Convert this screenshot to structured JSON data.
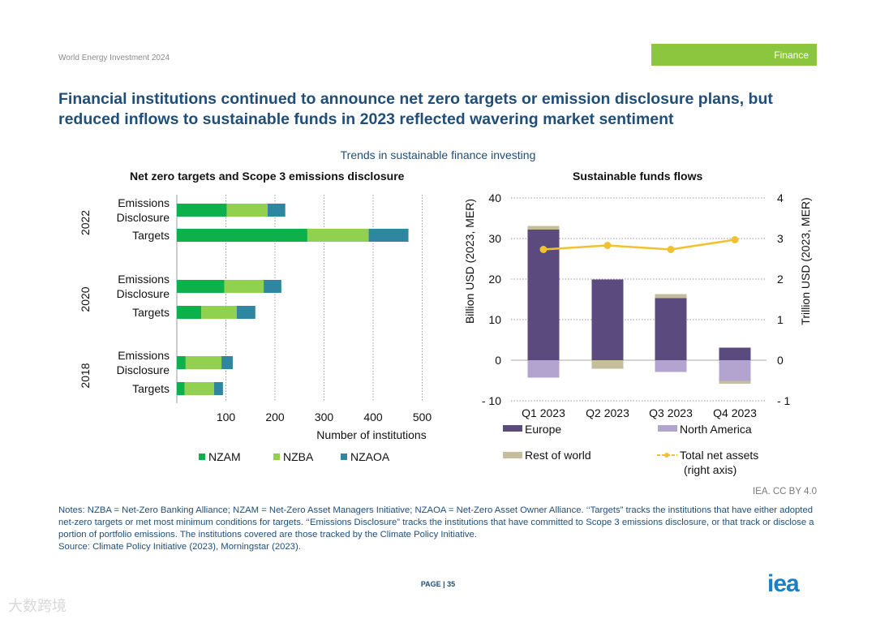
{
  "header": {
    "report": "World Energy Investment 2024",
    "section": "Finance"
  },
  "title": "Financial institutions continued to announce net zero targets or emission disclosure plans, but reduced inflows to sustainable funds in 2023 reflected wavering market sentiment",
  "figure_title": "Trends in sustainable finance investing",
  "colors": {
    "NZAM": "#0db04b",
    "NZBA": "#92d050",
    "NZAOA": "#2e86a0",
    "Europe": "#5b4a7e",
    "North America": "#b3a4cf",
    "Rest of world": "#c5bd9c",
    "Total net assets": "#f2c12e"
  },
  "chart_data": [
    {
      "type": "bar",
      "orientation": "horizontal-stacked",
      "title": "Net zero targets and Scope 3 emissions disclosure",
      "xlabel": "Number of institutions",
      "xlim": [
        0,
        500
      ],
      "xticks": [
        "100",
        "200",
        "300",
        "400",
        "500"
      ],
      "groups": [
        "2022",
        "2020",
        "2018"
      ],
      "categories": [
        "Emissions Disclosure",
        "Targets"
      ],
      "category_labels": [
        [
          "Emissions",
          "Disclosure"
        ],
        [
          "Targets"
        ]
      ],
      "series": [
        {
          "name": "NZAM",
          "values": {
            "2022": [
              102,
              266
            ],
            "2020": [
              97,
              50
            ],
            "2018": [
              18,
              16
            ]
          }
        },
        {
          "name": "NZBA",
          "values": {
            "2022": [
              83,
              125
            ],
            "2020": [
              80,
              72
            ],
            "2018": [
              73,
              60
            ]
          }
        },
        {
          "name": "NZAOA",
          "values": {
            "2022": [
              36,
              81
            ],
            "2020": [
              36,
              38
            ],
            "2018": [
              23,
              18
            ]
          }
        }
      ],
      "legend": "bottom",
      "grid": true
    },
    {
      "type": "bar",
      "orientation": "vertical-stacked-with-line",
      "title": "Sustainable funds flows",
      "ylabel": "Billion USD (2023, MER)",
      "ylabel_right": "Trillion USD (2023, MER)",
      "ylim": [
        -10,
        40
      ],
      "ylim_right": [
        -1,
        4
      ],
      "yticks": [
        "40",
        "30",
        "20",
        "10",
        "0",
        "- 10"
      ],
      "yticks_right": [
        "4",
        "3",
        "2",
        "1",
        "0",
        "- 1"
      ],
      "categories": [
        "Q1 2023",
        "Q2 2023",
        "Q3 2023",
        "Q4 2023"
      ],
      "series": [
        {
          "name": "Europe",
          "values": [
            32.2,
            19.9,
            15.3,
            3.1
          ]
        },
        {
          "name": "North America",
          "values": [
            -4.3,
            0,
            -2.9,
            -5.1
          ]
        },
        {
          "name": "Rest of world",
          "values": [
            0.9,
            -2.1,
            1.0,
            -0.7
          ]
        },
        {
          "name": "Total net assets",
          "axis": "right",
          "type": "line",
          "values": [
            2.73,
            2.83,
            2.73,
            2.97
          ]
        }
      ],
      "legend_labels": [
        "Europe",
        "North America",
        "Rest of world",
        "Total net assets",
        "(right axis)"
      ],
      "legend": "bottom",
      "grid": true
    }
  ],
  "credit": "IEA. CC BY 4.0",
  "notes": "Notes: NZBA = Net-Zero Banking Alliance; NZAM = Net-Zero Asset Managers Initiative; NZAOA = Net-Zero Asset Owner Alliance. ‘‘Targets” tracks the institutions that have either adopted net-zero targets or met most minimum conditions for targets. ‘‘Emissions Disclosure” tracks the institutions that have committed to Scope 3 emissions disclosure, or that track or disclose a portion of portfolio emissions. The institutions covered are those tracked by the Climate Policy Initiative.",
  "source": "Source: Climate Policy Initiative (2023), Morningstar (2023).",
  "page": "PAGE | 35",
  "logo": "iea",
  "watermark": "大数跨境"
}
